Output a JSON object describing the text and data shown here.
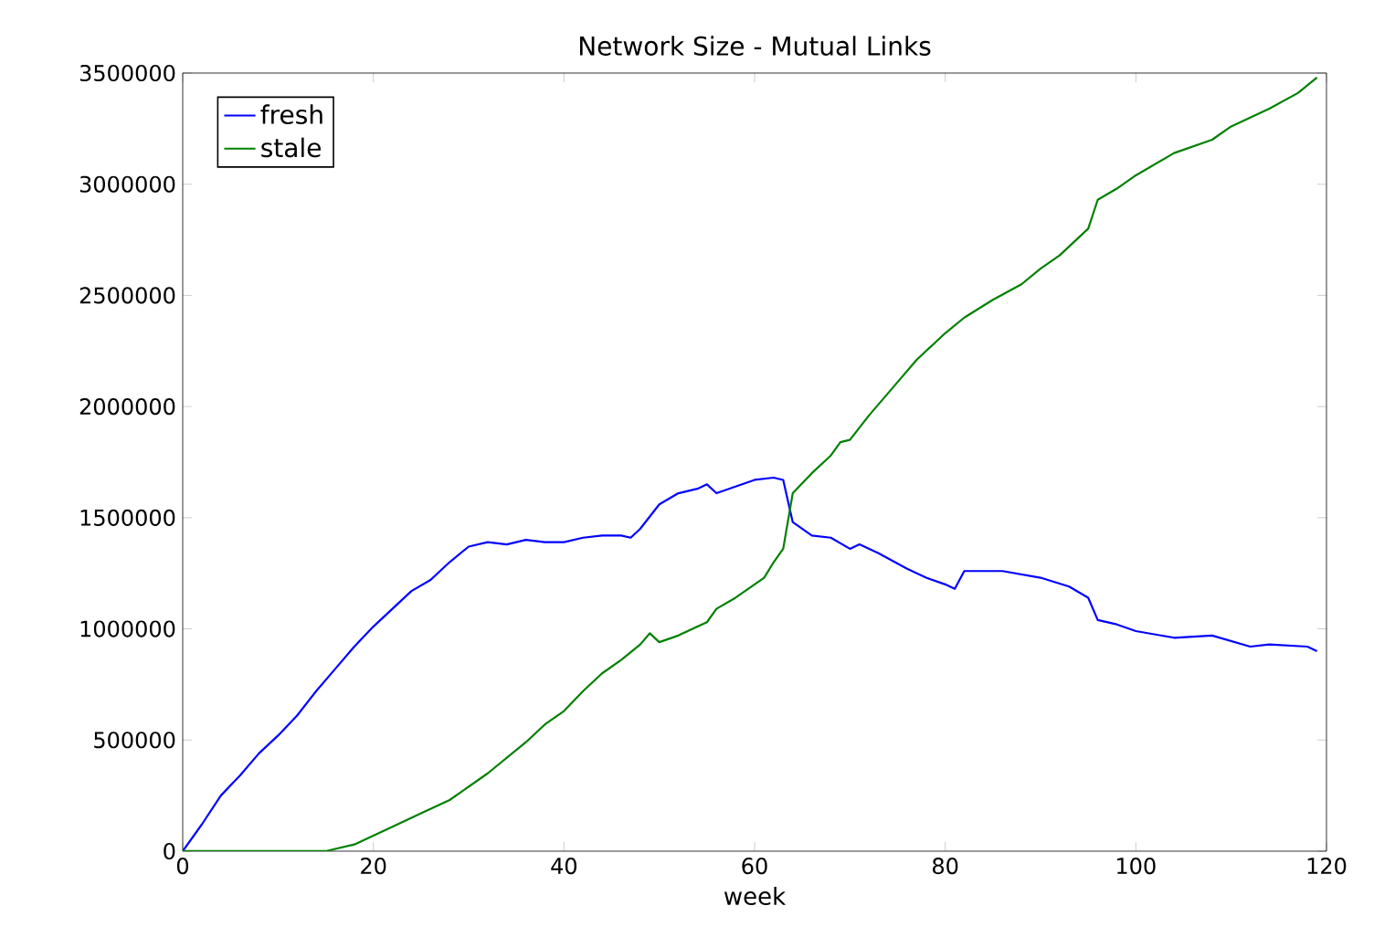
{
  "chart_data": {
    "type": "line",
    "title": "Network Size - Mutual Links",
    "xlabel": "week",
    "xlim": [
      0,
      120
    ],
    "ylim": [
      0,
      3500000
    ],
    "xticks": [
      0,
      20,
      40,
      60,
      80,
      100,
      120
    ],
    "yticks": [
      0,
      500000,
      1000000,
      1500000,
      2000000,
      2500000,
      3000000,
      3500000
    ],
    "legend": "top left",
    "grid": false,
    "marker": "none",
    "line_style": "solid",
    "series": [
      {
        "name": "fresh",
        "color": "#0000ff",
        "x": [
          0,
          2,
          4,
          6,
          8,
          10,
          12,
          14,
          16,
          18,
          20,
          22,
          24,
          26,
          28,
          30,
          32,
          34,
          36,
          38,
          40,
          42,
          44,
          46,
          47,
          48,
          50,
          52,
          54,
          55,
          56,
          58,
          60,
          62,
          63,
          64,
          66,
          68,
          70,
          71,
          73,
          76,
          78,
          80,
          81,
          82,
          86,
          90,
          93,
          95,
          96,
          98,
          100,
          104,
          108,
          112,
          114,
          118,
          119
        ],
        "values": [
          0,
          120000,
          250000,
          340000,
          440000,
          520000,
          610000,
          720000,
          820000,
          920000,
          1010000,
          1090000,
          1170000,
          1220000,
          1300000,
          1370000,
          1390000,
          1380000,
          1400000,
          1390000,
          1390000,
          1410000,
          1420000,
          1420000,
          1410000,
          1450000,
          1560000,
          1610000,
          1630000,
          1650000,
          1610000,
          1640000,
          1670000,
          1680000,
          1670000,
          1480000,
          1420000,
          1410000,
          1360000,
          1380000,
          1340000,
          1270000,
          1230000,
          1200000,
          1180000,
          1260000,
          1260000,
          1230000,
          1190000,
          1140000,
          1040000,
          1020000,
          990000,
          960000,
          970000,
          920000,
          930000,
          920000,
          900000
        ]
      },
      {
        "name": "stale",
        "color": "#008000",
        "x": [
          0,
          15,
          16,
          18,
          20,
          22,
          25,
          28,
          30,
          32,
          34,
          36,
          38,
          40,
          42,
          44,
          46,
          48,
          49,
          50,
          52,
          55,
          56,
          58,
          60,
          61,
          62,
          63,
          64,
          66,
          68,
          69,
          70,
          72,
          75,
          77,
          80,
          82,
          85,
          88,
          90,
          92,
          94,
          95,
          96,
          98,
          100,
          104,
          108,
          110,
          114,
          117,
          119
        ],
        "values": [
          0,
          0,
          10000,
          30000,
          70000,
          110000,
          170000,
          230000,
          290000,
          350000,
          420000,
          490000,
          570000,
          630000,
          720000,
          800000,
          860000,
          930000,
          980000,
          940000,
          970000,
          1030000,
          1090000,
          1140000,
          1200000,
          1230000,
          1300000,
          1360000,
          1610000,
          1700000,
          1780000,
          1840000,
          1850000,
          1960000,
          2110000,
          2210000,
          2330000,
          2400000,
          2480000,
          2550000,
          2620000,
          2680000,
          2760000,
          2800000,
          2930000,
          2980000,
          3040000,
          3140000,
          3200000,
          3260000,
          3340000,
          3410000,
          3480000
        ]
      }
    ]
  }
}
